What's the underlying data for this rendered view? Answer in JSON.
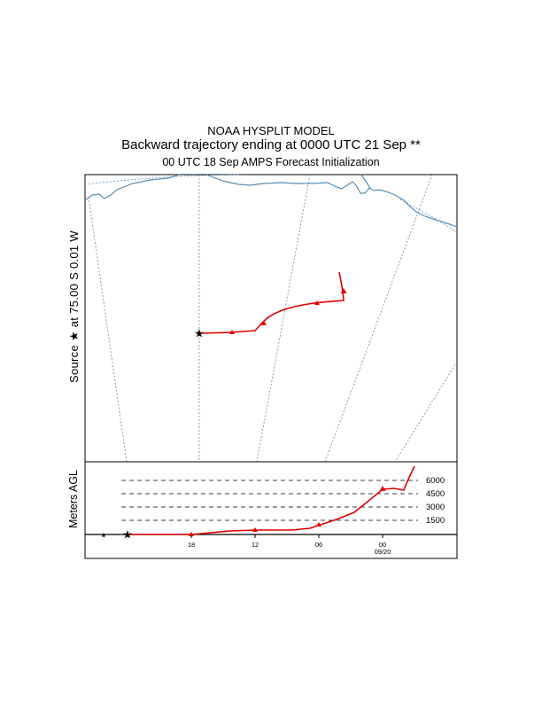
{
  "header": {
    "line1": "NOAA HYSPLIT MODEL",
    "line2": "Backward trajectory ending at 0000 UTC 21 Sep **",
    "line3": "00 UTC 18 Sep    AMPS  Forecast Initialization"
  },
  "map": {
    "source_label": "Source ★ at  75.00 S   0.01 W"
  },
  "vertical": {
    "axis_label": "Meters AGL",
    "levels": [
      "6000",
      "4500",
      "3000",
      "1500"
    ],
    "time_ticks": [
      "18",
      "12",
      "06",
      "00"
    ],
    "date_label": "09/20"
  },
  "colors": {
    "trajectory": "#e00000",
    "coastline": "#5b8db5",
    "meridian": "#5b8db5"
  }
}
